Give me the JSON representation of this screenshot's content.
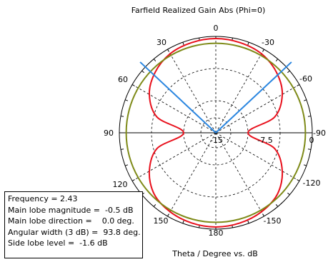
{
  "chart_data": {
    "type": "polar-line",
    "title": "Farfield Realized Gain Abs (Phi=0)",
    "xlabel": "Theta / Degree vs. dB",
    "angle_ticks": [
      "0",
      "-30",
      "-60",
      "-90",
      "-120",
      "-150",
      "180",
      "150",
      "120",
      "90",
      "60",
      "30"
    ],
    "radial_ticks": [
      "-15",
      "-7.5",
      "0"
    ],
    "radial_range_db": [
      -22.5,
      0
    ],
    "grid": true,
    "series": [
      {
        "color": "#e8101c",
        "theta_deg": [
          0,
          15,
          30,
          45,
          60,
          75,
          90,
          105,
          120,
          135,
          150,
          165,
          180,
          195,
          210,
          225,
          240,
          255,
          270,
          285,
          300,
          315,
          330,
          345
        ],
        "gain_db": [
          -0.5,
          -0.7,
          -1.2,
          -2.5,
          -4.6,
          -8.3,
          -15,
          -8.3,
          -4.6,
          -2.2,
          -1.2,
          -0.7,
          -0.5,
          -0.7,
          -1.2,
          -2.2,
          -4.6,
          -8.3,
          -15,
          -8.3,
          -4.6,
          -2.5,
          -1.2,
          -0.7
        ]
      },
      {
        "color": "#7e8a18",
        "theta_deg": [
          0,
          15,
          30,
          45,
          60,
          75,
          90,
          105,
          120,
          135,
          150,
          165,
          180,
          195,
          210,
          225,
          240,
          255,
          270,
          285,
          300,
          315,
          330,
          345
        ],
        "gain_db": [
          -1.6,
          -1.6,
          -1.6,
          -1.6,
          -1.6,
          -1.6,
          -1.6,
          -1.6,
          -1.6,
          -1.6,
          -1.6,
          -1.6,
          -1.6,
          -1.6,
          -1.6,
          -1.6,
          -1.6,
          -1.6,
          -1.6,
          -1.6,
          -1.6,
          -1.6,
          -1.6,
          -1.6
        ]
      }
    ],
    "beamwidth_lines": {
      "color": "#2a86e0",
      "angles_deg": [
        46.9,
        -46.9
      ]
    },
    "info": {
      "frequency": "Frequency = 2.43",
      "main_lobe_magnitude": "Main lobe magnitude =  -0.5 dB",
      "main_lobe_direction": "Main lobe direction =    0.0 deg.",
      "angular_width": "Angular width (3 dB) =  93.8 deg.",
      "side_lobe_level": "Side lobe level =  -1.6 dB"
    }
  }
}
